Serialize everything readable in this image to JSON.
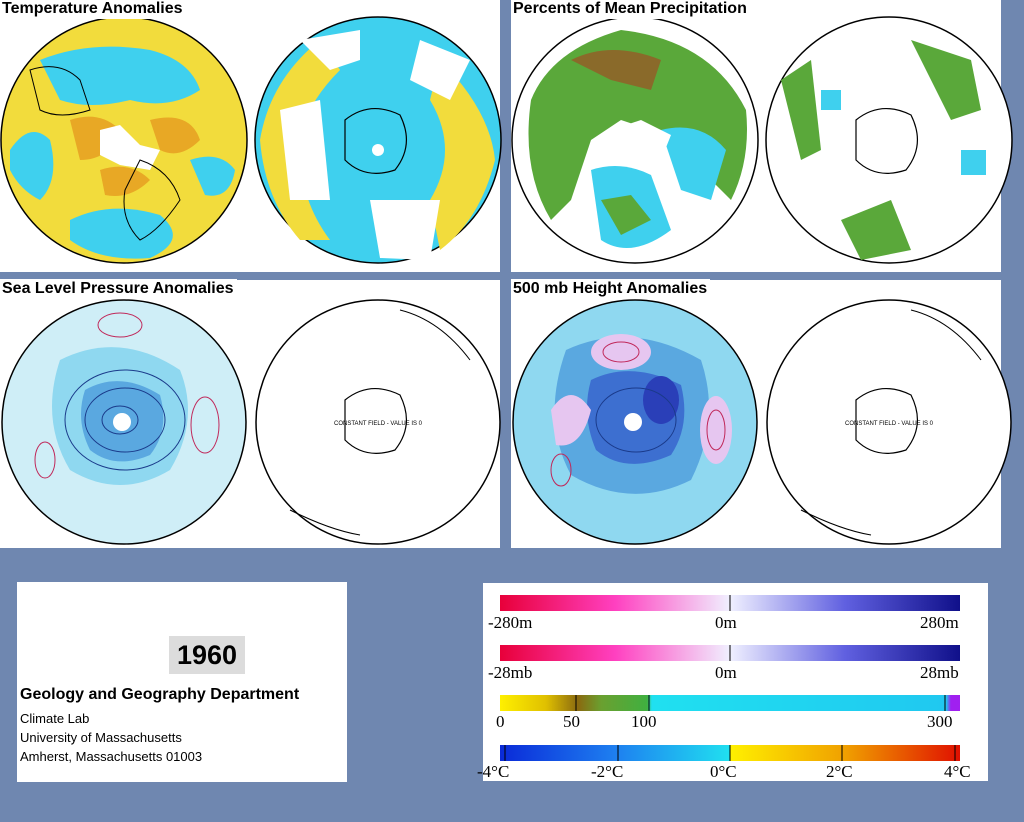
{
  "panels": {
    "temperature": {
      "title": "Temperature Anomalies"
    },
    "precipitation": {
      "title": "Percents of Mean Precipitation"
    },
    "slp": {
      "title": "Sea Level Pressure Anomalies",
      "constant_note": "CONSTANT FIELD - VALUE IS 0"
    },
    "height500": {
      "title": "500 mb Height Anomalies",
      "constant_note": "CONSTANT FIELD - VALUE IS 0"
    }
  },
  "info": {
    "year": "1960",
    "department": "Geology and Geography Department",
    "lab": "Climate Lab",
    "university": "University of Massachusetts",
    "city": "Amherst, Massachusetts 01003"
  },
  "legends": {
    "height": {
      "min": "-280m",
      "mid": "0m",
      "max": "280m"
    },
    "pressure": {
      "min": "-28mb",
      "mid": "0m",
      "max": "28mb"
    },
    "precip": {
      "t0": "0",
      "t1": "50",
      "t2": "100",
      "t3": "300"
    },
    "temp": {
      "t0": "-4°C",
      "t1": "-2°C",
      "t2": "0°C",
      "t3": "2°C",
      "t4": "4°C"
    }
  },
  "colors": {
    "background": "#6f87b0",
    "warm_yellow": "#f2dc3c",
    "warm_orange": "#e8a825",
    "cool_cyan": "#3fd0ee",
    "cool_blue": "#2c9ee8",
    "precip_green": "#5aa83a",
    "precip_brown": "#8a6a2a",
    "pressure_light": "#cfeef7",
    "pressure_mid": "#8fd8f0",
    "pressure_low": "#5aa8e0",
    "contour_pos": "#c0285a",
    "contour_neg": "#1a3a8a"
  }
}
